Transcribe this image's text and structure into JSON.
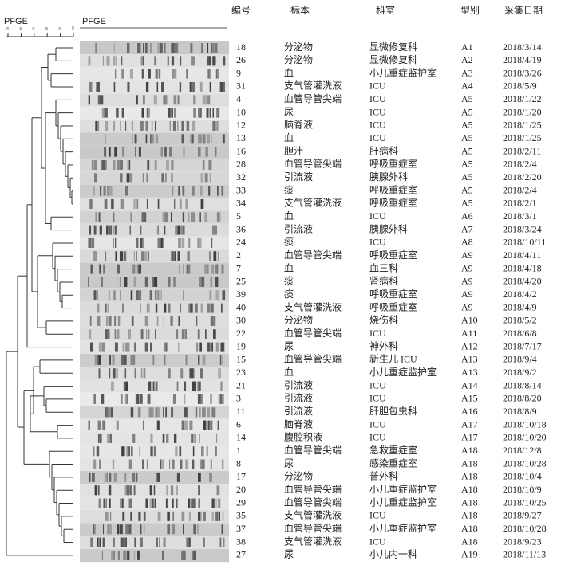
{
  "header": {
    "pfge_left": "PFGE",
    "pfge_top": "PFGE",
    "scale": [
      "50",
      "60",
      "70",
      "80",
      "90",
      "100"
    ]
  },
  "table": {
    "columns": [
      "编号",
      "标本",
      "科室",
      "型别",
      "采集日期"
    ],
    "rows": [
      [
        "18",
        "分泌物",
        "显微修复科",
        "A1",
        "2018/3/14"
      ],
      [
        "26",
        "分泌物",
        "显微修复科",
        "A2",
        "2018/4/19"
      ],
      [
        "9",
        "血",
        "小儿重症监护室",
        "A3",
        "2018/3/26"
      ],
      [
        "31",
        "支气管灌洗液",
        "ICU",
        "A4",
        "2018/5/9"
      ],
      [
        "4",
        "血管导管尖端",
        "ICU",
        "A5",
        "2018/1/22"
      ],
      [
        "10",
        "尿",
        "ICU",
        "A5",
        "2018/1/20"
      ],
      [
        "12",
        "脑脊液",
        "ICU",
        "A5",
        "2018/1/25"
      ],
      [
        "13",
        "血",
        "ICU",
        "A5",
        "2018/1/25"
      ],
      [
        "16",
        "胆汁",
        "肝病科",
        "A5",
        "2018/2/11"
      ],
      [
        "28",
        "血管导管尖端",
        "呼吸重症室",
        "A5",
        "2018/2/4"
      ],
      [
        "32",
        "引流液",
        "胰腺外科",
        "A5",
        "2018/2/20"
      ],
      [
        "33",
        "痰",
        "呼吸重症室",
        "A5",
        "2018/2/4"
      ],
      [
        "34",
        "支气管灌洗液",
        "呼吸重症室",
        "A5",
        "2018/2/1"
      ],
      [
        "5",
        "血",
        "ICU",
        "A6",
        "2018/3/1"
      ],
      [
        "36",
        "引流液",
        "胰腺外科",
        "A7",
        "2018/3/24"
      ],
      [
        "24",
        "痰",
        "ICU",
        "A8",
        "2018/10/11"
      ],
      [
        "2",
        "血管导管尖端",
        "呼吸重症室",
        "A9",
        "2018/4/11"
      ],
      [
        "7",
        "血",
        "血三科",
        "A9",
        "2018/4/18"
      ],
      [
        "25",
        "痰",
        "肾病科",
        "A9",
        "2018/4/20"
      ],
      [
        "39",
        "痰",
        "呼吸重症室",
        "A9",
        "2018/4/2"
      ],
      [
        "40",
        "支气管灌洗液",
        "呼吸重症室",
        "A9",
        "2018/4/9"
      ],
      [
        "30",
        "分泌物",
        "烧伤科",
        "A10",
        "2018/5/2"
      ],
      [
        "22",
        "血管导管尖端",
        "ICU",
        "A11",
        "2018/6/8"
      ],
      [
        "19",
        "尿",
        "神外科",
        "A12",
        "2018/7/17"
      ],
      [
        "15",
        "血管导管尖端",
        "新生儿 ICU",
        "A13",
        "2018/9/4"
      ],
      [
        "23",
        "血",
        "小儿重症监护室",
        "A13",
        "2018/9/2"
      ],
      [
        "21",
        "引流液",
        "ICU",
        "A14",
        "2018/8/14"
      ],
      [
        "3",
        "引流液",
        "ICU",
        "A15",
        "2018/8/20"
      ],
      [
        "11",
        "引流液",
        "肝胆包虫科",
        "A16",
        "2018/8/9"
      ],
      [
        "6",
        "脑脊液",
        "ICU",
        "A17",
        "2018/10/18"
      ],
      [
        "14",
        "腹腔积液",
        "ICU",
        "A17",
        "2018/10/20"
      ],
      [
        "1",
        "血管导管尖端",
        "急救重症室",
        "A18",
        "2018/12/8"
      ],
      [
        "8",
        "尿",
        "感染重症室",
        "A18",
        "2018/10/28"
      ],
      [
        "17",
        "分泌物",
        "普外科",
        "A18",
        "2018/10/4"
      ],
      [
        "20",
        "血管导管尖端",
        "小儿重症监护室",
        "A18",
        "2018/10/9"
      ],
      [
        "29",
        "血管导管尖端",
        "小儿重症监护室",
        "A18",
        "2018/10/25"
      ],
      [
        "35",
        "支气管灌洗液",
        "ICU",
        "A18",
        "2018/9/27"
      ],
      [
        "37",
        "血管导管尖端",
        "小儿重症监护室",
        "A18",
        "2018/10/28"
      ],
      [
        "38",
        "支气管灌洗液",
        "ICU",
        "A18",
        "2018/9/23"
      ],
      [
        "27",
        "尿",
        "小儿内一科",
        "A19",
        "2018/11/13"
      ]
    ]
  }
}
